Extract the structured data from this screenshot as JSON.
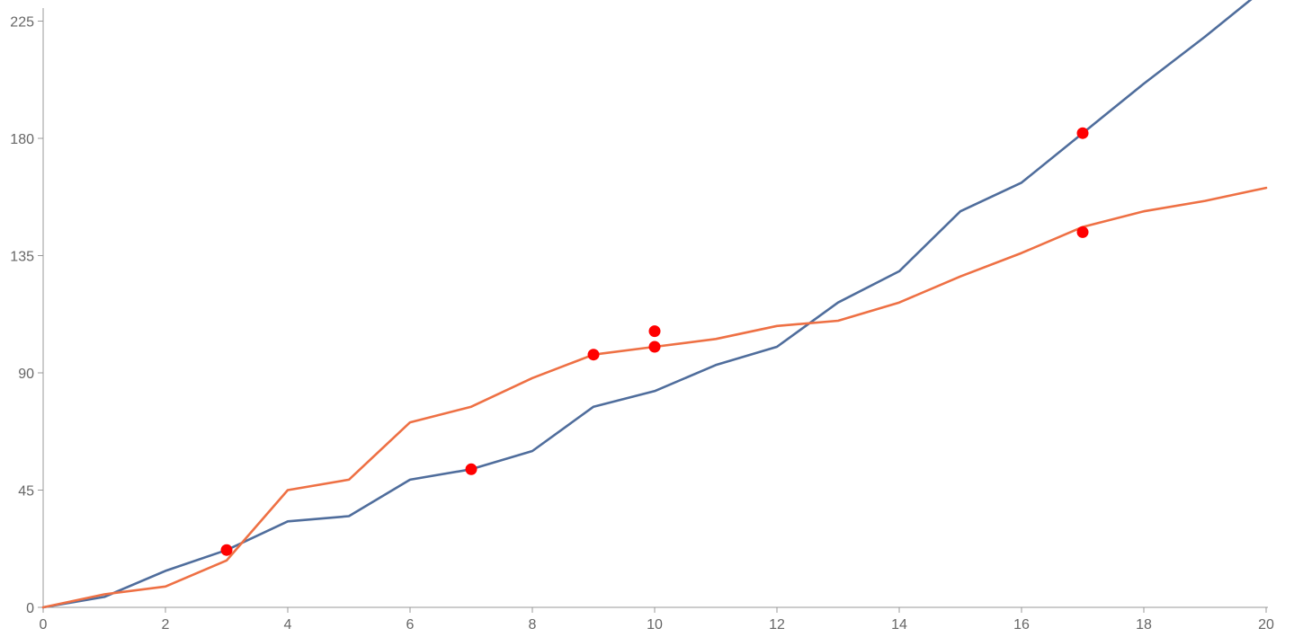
{
  "chart_data": {
    "type": "line",
    "title": "",
    "xlabel": "",
    "ylabel": "",
    "xlim": [
      0,
      20
    ],
    "ylim": [
      0,
      230
    ],
    "grid": false,
    "x_ticks": [
      "0",
      "2",
      "4",
      "6",
      "8",
      "10",
      "12",
      "14",
      "16",
      "18",
      "20"
    ],
    "y_ticks": [
      "0",
      "45",
      "90",
      "135",
      "180",
      "225"
    ],
    "colors": {
      "blue": "#4f6d9c",
      "orange": "#ee7044",
      "markers": "#ff0000",
      "axis": "#999999",
      "tick_text": "#666666"
    },
    "series": [
      {
        "color": "#4f6d9c",
        "x": [
          0,
          1,
          2,
          3,
          4,
          5,
          6,
          7,
          8,
          9,
          10,
          11,
          12,
          13,
          14,
          15,
          16,
          17,
          18,
          19,
          20
        ],
        "y": [
          0,
          4,
          14,
          22,
          33,
          35,
          49,
          53,
          60,
          77,
          83,
          93,
          100,
          117,
          129,
          152,
          163,
          182,
          201,
          219,
          238
        ]
      },
      {
        "color": "#ee7044",
        "x": [
          0,
          1,
          2,
          3,
          4,
          5,
          6,
          7,
          8,
          9,
          10,
          11,
          12,
          13,
          14,
          15,
          16,
          17,
          18,
          19,
          20
        ],
        "y": [
          0,
          5,
          8,
          18,
          45,
          49,
          71,
          77,
          88,
          97,
          100,
          103,
          108,
          110,
          117,
          127,
          136,
          146,
          152,
          156,
          161
        ]
      }
    ],
    "markers": [
      {
        "x": 3,
        "y": 22
      },
      {
        "x": 7,
        "y": 53
      },
      {
        "x": 9,
        "y": 97
      },
      {
        "x": 10,
        "y": 100
      },
      {
        "x": 10,
        "y": 106
      },
      {
        "x": 17,
        "y": 182
      },
      {
        "x": 17,
        "y": 144
      }
    ]
  }
}
